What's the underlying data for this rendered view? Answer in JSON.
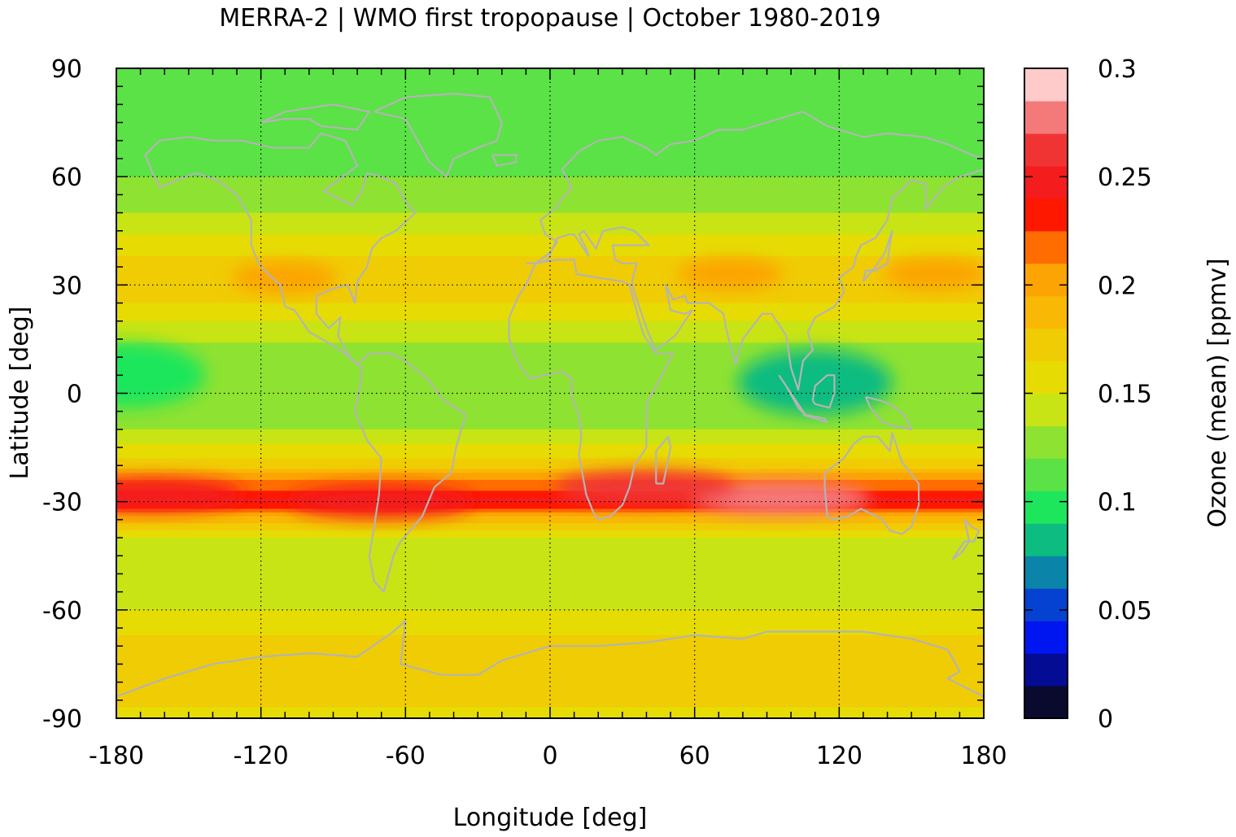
{
  "chart_data": {
    "type": "heatmap",
    "title": "MERRA-2 | WMO first tropopause | October 1980-2019",
    "xlabel": "Longitude [deg]",
    "ylabel": "Latitude [deg]",
    "colorbar_label": "Ozone (mean) [ppmv]",
    "xlim": [
      -180,
      180
    ],
    "ylim": [
      -90,
      90
    ],
    "xticks": [
      -180,
      -120,
      -60,
      0,
      60,
      120,
      180
    ],
    "yticks": [
      90,
      60,
      30,
      0,
      -30,
      -60,
      -90
    ],
    "xtick_labels": [
      "-180",
      "-120",
      "-60",
      "0",
      "60",
      "120",
      "180"
    ],
    "ytick_labels": [
      "90",
      "60",
      "30",
      "0",
      "-30",
      "-60",
      "-90"
    ],
    "grid": true,
    "colorbar": {
      "range": [
        0,
        0.3
      ],
      "ticks": [
        0,
        0.05,
        0.1,
        0.15,
        0.2,
        0.25,
        0.3
      ],
      "tick_labels": [
        "0",
        "0.05",
        "0.1",
        "0.15",
        "0.2",
        "0.25",
        "0.3"
      ],
      "levels": [
        "#0a0a2e",
        "#040c94",
        "#0016f0",
        "#0642d2",
        "#0a84a8",
        "#0cbc80",
        "#1ee65c",
        "#5ae246",
        "#8ee232",
        "#c8e414",
        "#e6dc04",
        "#f0cc04",
        "#f8b804",
        "#fca404",
        "#ff6c00",
        "#ff1800",
        "#f41c1c",
        "#f03434",
        "#f47a7a",
        "#ffcaca"
      ]
    },
    "zonal_profile_by_latitude": {
      "lat": [
        90,
        80,
        70,
        60,
        50,
        40,
        30,
        20,
        10,
        0,
        -10,
        -20,
        -25,
        -30,
        -35,
        -40,
        -50,
        -60,
        -70,
        -80,
        -90
      ],
      "ozone_ppmv": [
        0.11,
        0.11,
        0.115,
        0.12,
        0.135,
        0.16,
        0.18,
        0.15,
        0.125,
        0.12,
        0.135,
        0.175,
        0.215,
        0.245,
        0.185,
        0.15,
        0.145,
        0.15,
        0.17,
        0.175,
        0.16
      ]
    },
    "features": [
      {
        "kind": "maximum",
        "lon": 95,
        "lat": -29,
        "value": 0.27
      },
      {
        "kind": "maximum",
        "lon": 40,
        "lat": -26,
        "value": 0.255
      },
      {
        "kind": "maximum",
        "lon": -165,
        "lat": -28,
        "value": 0.245
      },
      {
        "kind": "maximum",
        "lon": -70,
        "lat": -30,
        "value": 0.25
      },
      {
        "kind": "minimum",
        "lon": 110,
        "lat": 3,
        "value": 0.08
      },
      {
        "kind": "minimum",
        "lon": -175,
        "lat": 5,
        "value": 0.1
      },
      {
        "kind": "maximum",
        "lon": -110,
        "lat": 32,
        "value": 0.2
      },
      {
        "kind": "maximum",
        "lon": 75,
        "lat": 33,
        "value": 0.2
      },
      {
        "kind": "maximum",
        "lon": 160,
        "lat": 33,
        "value": 0.2
      }
    ],
    "coastlines": true,
    "coastline_color": "#b4b4b4"
  }
}
